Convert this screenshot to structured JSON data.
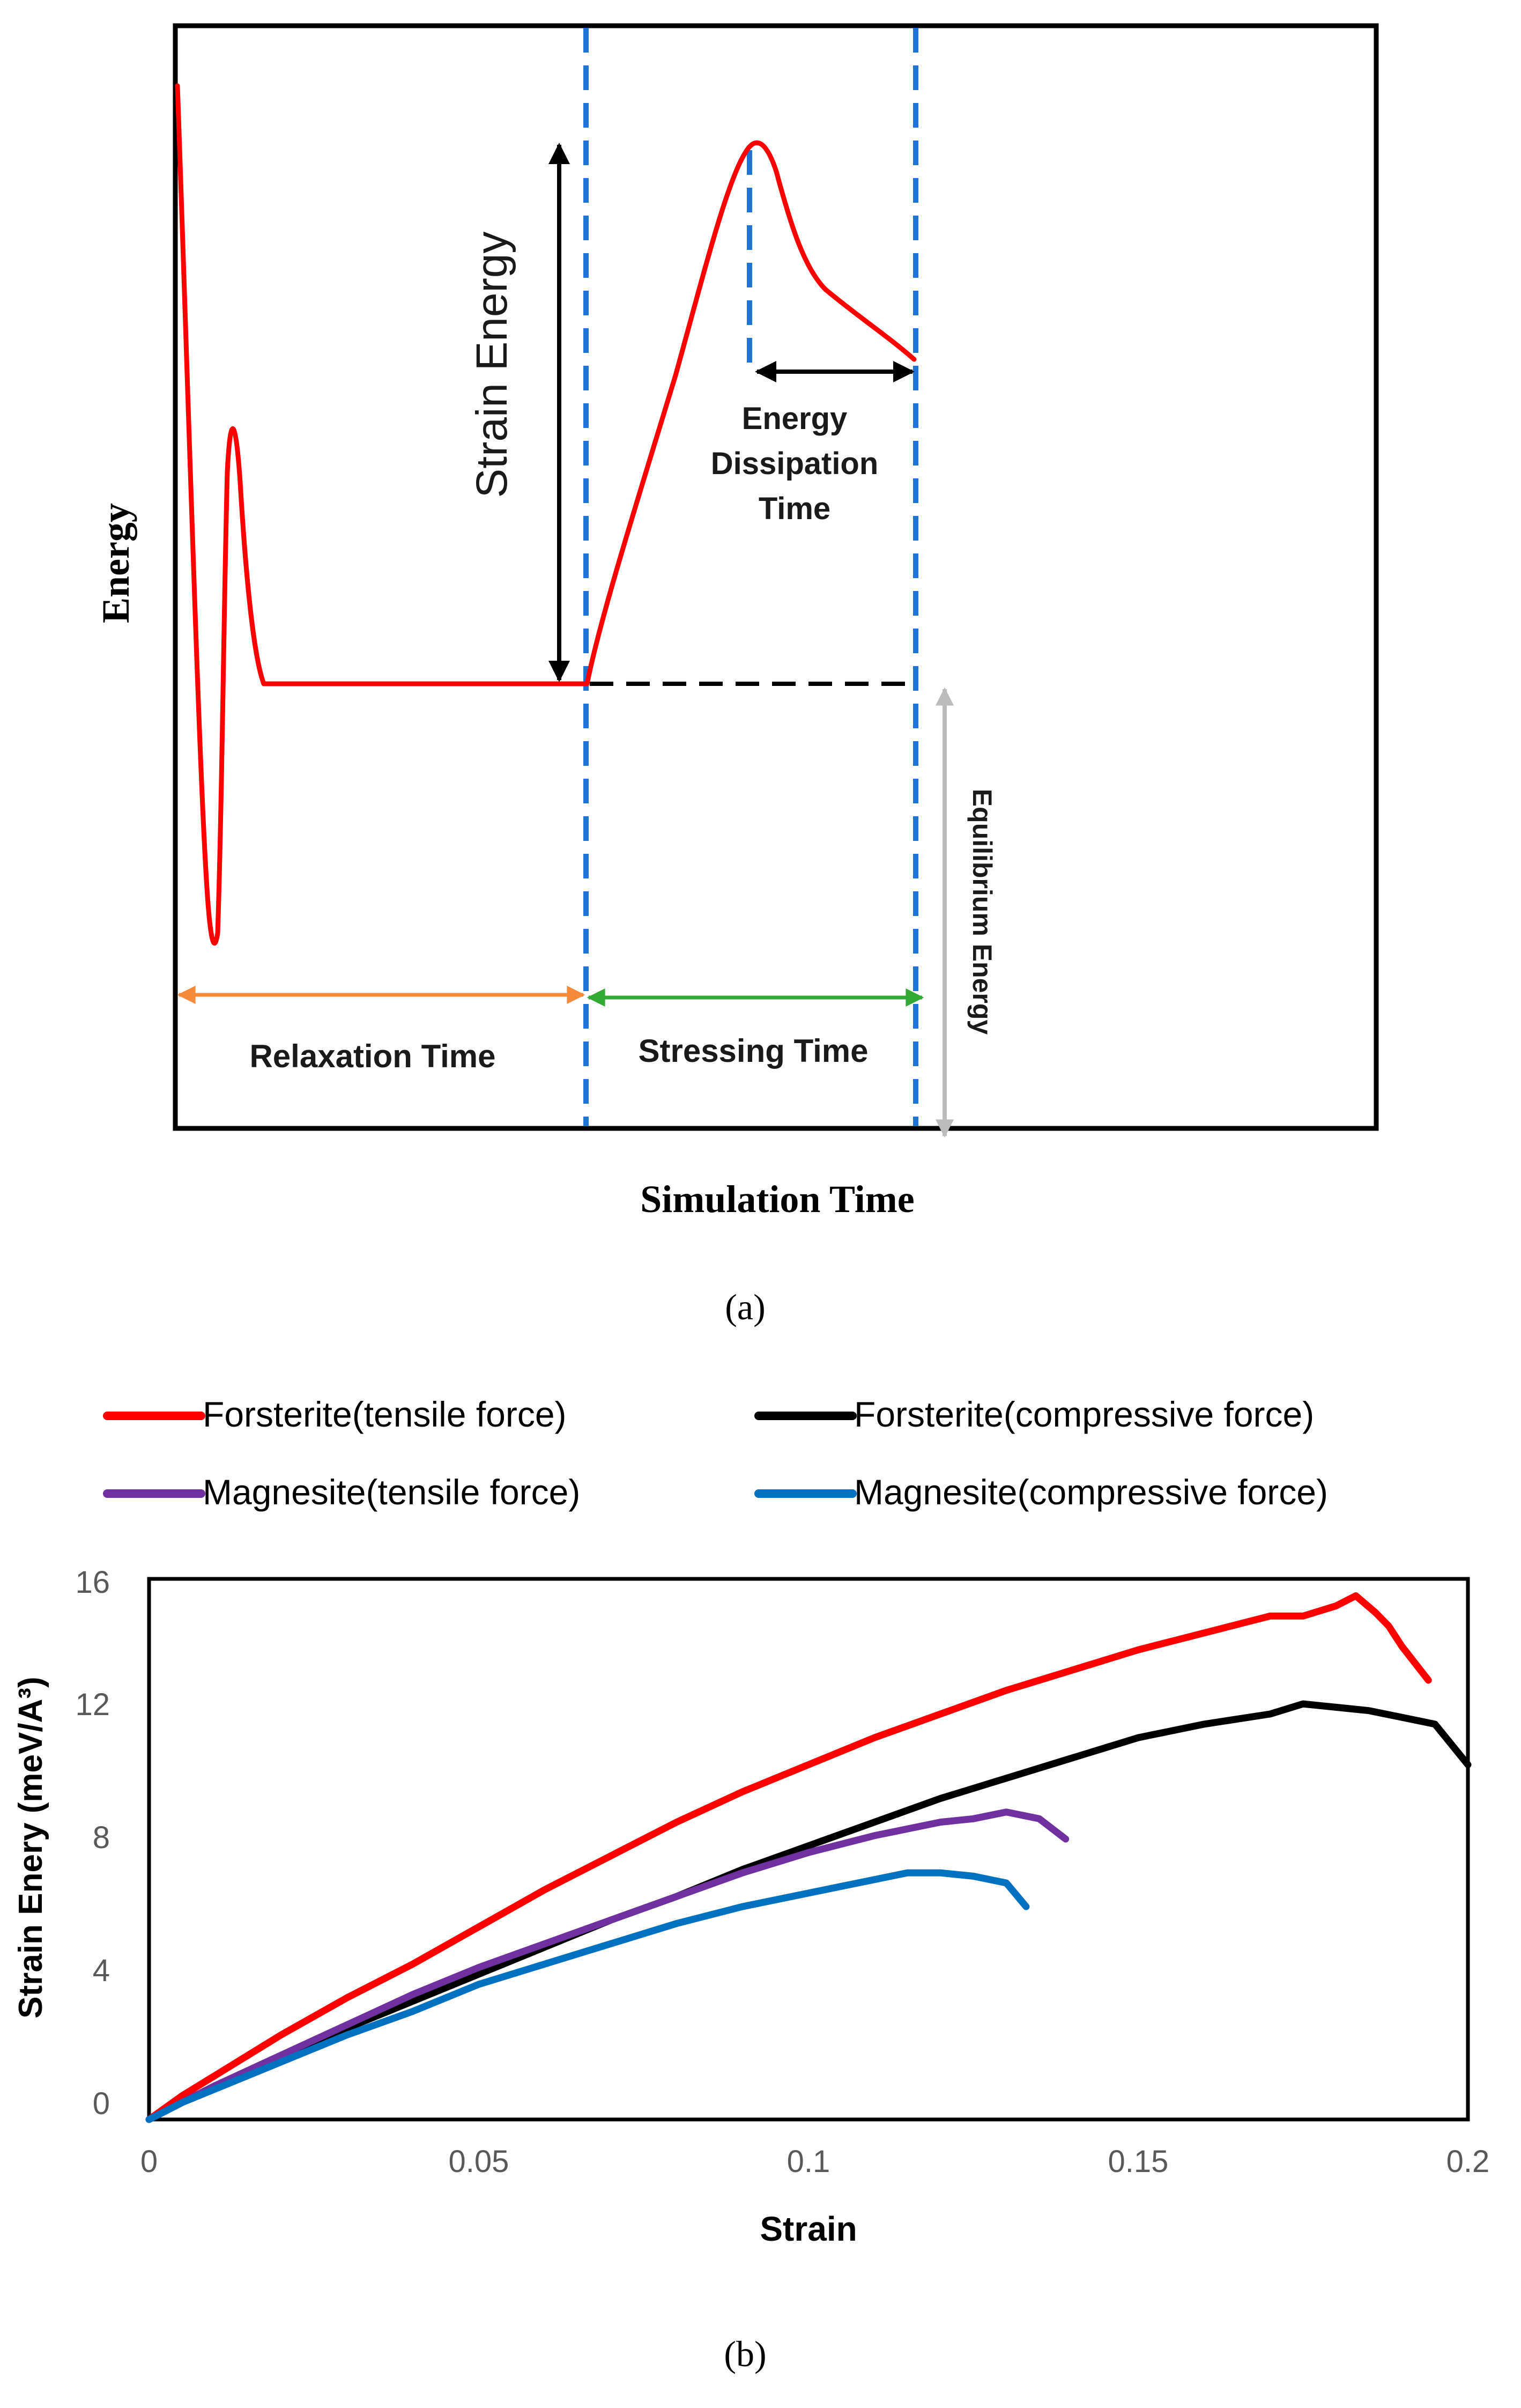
{
  "chart_data": [
    {
      "type": "line",
      "panel_label": "(a)",
      "xlabel": "Simulation Time",
      "ylabel": "Energy",
      "annotations": {
        "strain_energy": "Strain Energy",
        "energy_dissipation": [
          "Energy",
          "Dissipation",
          "Time"
        ],
        "relaxation_time": "Relaxation Time",
        "stressing_time": "Stressing Time",
        "equilibrium_energy": "Equilibrium Energy"
      },
      "colors": {
        "curve": "#ff0000",
        "phase_divider": "#1f73d4",
        "relaxation_arrow": "#f58a3a",
        "stressing_arrow": "#33aa33",
        "equilibrium_arrow": "#bbbbbb",
        "strain_arrow": "#000000"
      }
    },
    {
      "type": "line",
      "panel_label": "(b)",
      "xlabel": "Strain",
      "ylabel": "Strain Enery (meV/A³)",
      "xlim": [
        0,
        0.2
      ],
      "ylim": [
        0,
        16
      ],
      "xticks": [
        "0",
        "0.05",
        "0.1",
        "0.15",
        "0.2"
      ],
      "yticks": [
        "0",
        "4",
        "8",
        "12",
        "16"
      ],
      "legend": {
        "position": "top",
        "entries": [
          "Forsterite(tensile force)",
          "Forsterite(compressive force)",
          "Magnesite(tensile force)",
          "Magnesite(compressive force)"
        ]
      },
      "series": [
        {
          "name": "Forsterite(tensile force)",
          "color": "#ff0000",
          "x": [
            0,
            0.005,
            0.01,
            0.02,
            0.03,
            0.04,
            0.05,
            0.06,
            0.07,
            0.08,
            0.09,
            0.1,
            0.11,
            0.12,
            0.13,
            0.14,
            0.15,
            0.16,
            0.17,
            0.175,
            0.18,
            0.183,
            0.186,
            0.188,
            0.19,
            0.194
          ],
          "y": [
            0,
            0.7,
            1.3,
            2.5,
            3.6,
            4.6,
            5.7,
            6.8,
            7.8,
            8.8,
            9.7,
            10.5,
            11.3,
            12.0,
            12.7,
            13.3,
            13.9,
            14.4,
            14.9,
            14.9,
            15.2,
            15.5,
            15.0,
            14.6,
            14.0,
            13.0
          ]
        },
        {
          "name": "Forsterite(compressive force)",
          "color": "#000000",
          "x": [
            0,
            0.005,
            0.01,
            0.02,
            0.03,
            0.04,
            0.05,
            0.06,
            0.07,
            0.08,
            0.09,
            0.1,
            0.11,
            0.12,
            0.13,
            0.14,
            0.15,
            0.16,
            0.17,
            0.175,
            0.18,
            0.185,
            0.19,
            0.195,
            0.2
          ],
          "y": [
            0,
            0.5,
            1.0,
            1.8,
            2.7,
            3.5,
            4.3,
            5.1,
            5.9,
            6.6,
            7.4,
            8.1,
            8.8,
            9.5,
            10.1,
            10.7,
            11.3,
            11.7,
            12.0,
            12.3,
            12.2,
            12.1,
            11.9,
            11.7,
            10.5
          ]
        },
        {
          "name": "Magnesite(tensile force)",
          "color": "#7030a0",
          "x": [
            0,
            0.005,
            0.01,
            0.02,
            0.03,
            0.04,
            0.05,
            0.06,
            0.07,
            0.08,
            0.09,
            0.1,
            0.11,
            0.12,
            0.125,
            0.13,
            0.135,
            0.139
          ],
          "y": [
            0,
            0.5,
            1.0,
            1.9,
            2.8,
            3.7,
            4.5,
            5.2,
            5.9,
            6.6,
            7.3,
            7.9,
            8.4,
            8.8,
            8.9,
            9.1,
            8.9,
            8.3
          ]
        },
        {
          "name": "Magnesite(compressive force)",
          "color": "#0070c0",
          "x": [
            0,
            0.005,
            0.01,
            0.02,
            0.03,
            0.04,
            0.05,
            0.06,
            0.07,
            0.08,
            0.09,
            0.1,
            0.105,
            0.11,
            0.115,
            0.12,
            0.125,
            0.13,
            0.133
          ],
          "y": [
            0,
            0.5,
            0.9,
            1.7,
            2.5,
            3.2,
            4.0,
            4.6,
            5.2,
            5.8,
            6.3,
            6.7,
            6.9,
            7.1,
            7.3,
            7.3,
            7.2,
            7.0,
            6.3
          ]
        }
      ]
    }
  ]
}
